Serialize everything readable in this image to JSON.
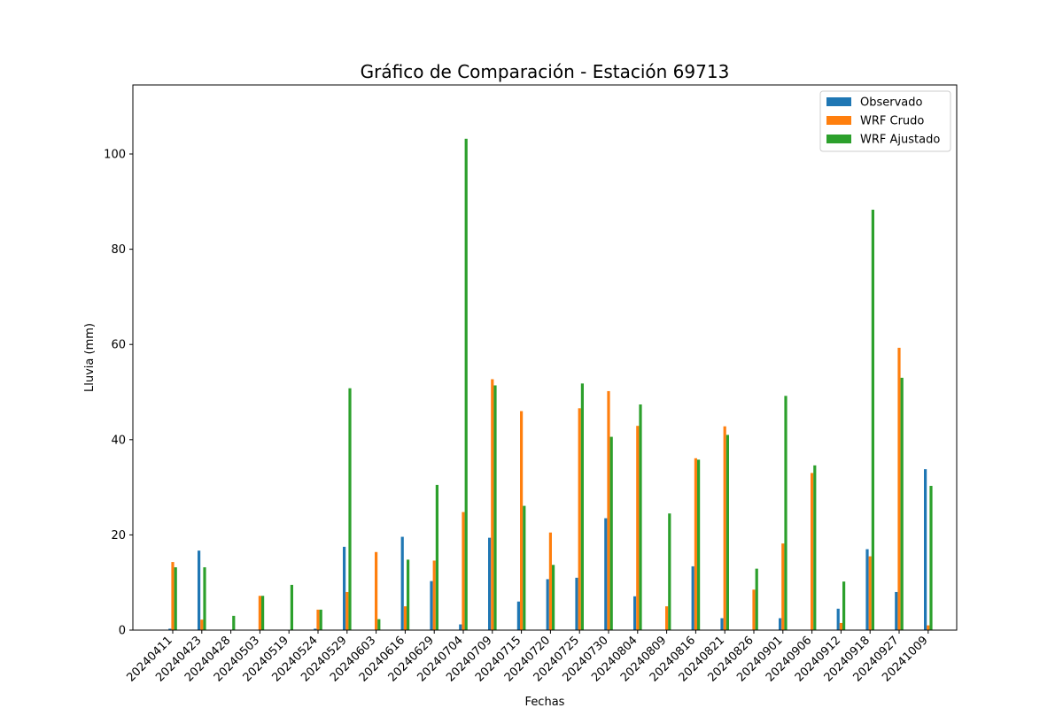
{
  "chart_data": {
    "type": "bar",
    "title": "Gráfico de Comparación - Estación 69713",
    "xlabel": "Fechas",
    "ylabel": "Lluvia (mm)",
    "ylim": [
      0,
      114.5
    ],
    "yticks": [
      0,
      20,
      40,
      60,
      80,
      100
    ],
    "categories": [
      "20240411",
      "20240423",
      "20240428",
      "20240503",
      "20240519",
      "20240524",
      "20240529",
      "20240603",
      "20240616",
      "20240629",
      "20240704",
      "20240709",
      "20240715",
      "20240720",
      "20240725",
      "20240730",
      "20240804",
      "20240809",
      "20240816",
      "20240821",
      "20240826",
      "20240901",
      "20240906",
      "20240912",
      "20240918",
      "20240927",
      "20241009"
    ],
    "legend_position": "upper right",
    "series": [
      {
        "name": "Observado",
        "color": "#1f77b4",
        "values": [
          0.3,
          16.7,
          0,
          0,
          0,
          0.3,
          17.5,
          0,
          19.6,
          10.3,
          1.2,
          19.4,
          6.0,
          10.7,
          11.0,
          23.5,
          7.1,
          0,
          13.4,
          2.5,
          0,
          2.5,
          0,
          4.5,
          17.0,
          8.0,
          33.8
        ]
      },
      {
        "name": "WRF Crudo",
        "color": "#ff7f0e",
        "values": [
          14.3,
          2.2,
          0,
          7.2,
          0,
          4.3,
          8.0,
          16.4,
          5.0,
          14.6,
          24.8,
          52.7,
          46.0,
          20.5,
          46.6,
          50.2,
          42.9,
          5.0,
          36.1,
          42.8,
          8.5,
          18.2,
          33.0,
          1.5,
          15.5,
          59.3,
          1.0
        ]
      },
      {
        "name": "WRF Ajustado",
        "color": "#2ca02c",
        "values": [
          13.2,
          13.2,
          3.0,
          7.2,
          9.5,
          4.3,
          50.8,
          2.3,
          14.8,
          30.5,
          103.2,
          51.4,
          26.1,
          13.7,
          51.8,
          40.6,
          47.4,
          24.5,
          35.8,
          41.0,
          12.9,
          49.2,
          34.6,
          10.2,
          88.3,
          53.0,
          30.3
        ]
      }
    ]
  }
}
